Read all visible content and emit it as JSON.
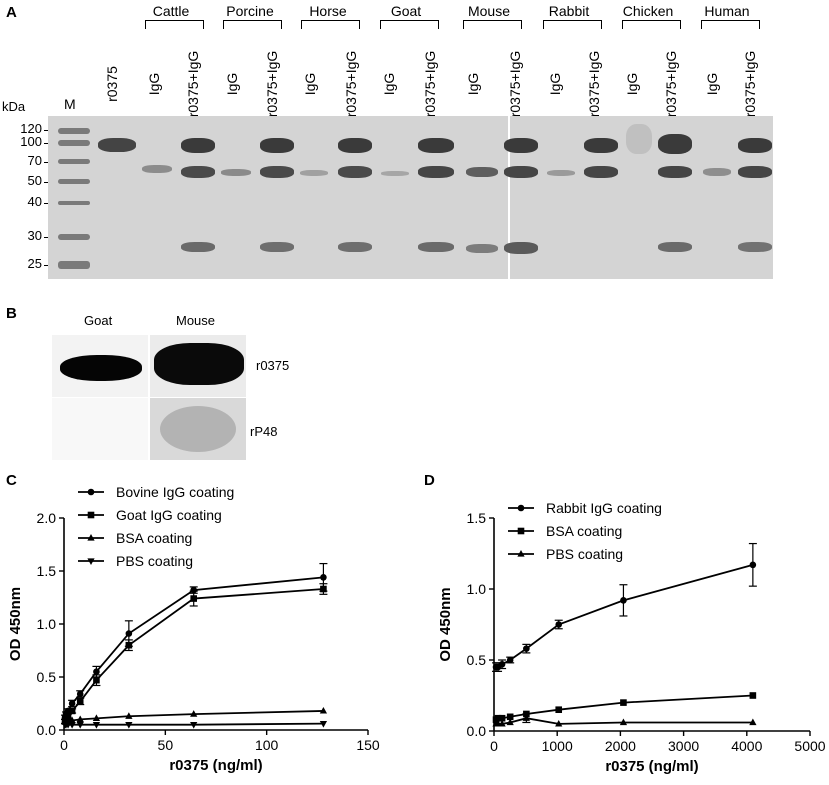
{
  "panels": {
    "a": "A",
    "b": "B",
    "c": "C",
    "d": "D"
  },
  "gel": {
    "kda_label": "kDa",
    "marker_label": "M",
    "mw_markers": [
      "120",
      "100",
      "70",
      "50",
      "40",
      "30",
      "25"
    ],
    "species": [
      "Cattle",
      "Porcine",
      "Horse",
      "Goat",
      "Mouse",
      "Rabbit",
      "Chicken",
      "Human"
    ],
    "lane_labels": [
      "r0375",
      "IgG",
      "r0375+IgG",
      "IgG",
      "r0375+IgG",
      "IgG",
      "r0375+IgG",
      "IgG",
      "r0375+IgG",
      "IgG",
      "r0375+IgG",
      "IgG",
      "r0375+IgG",
      "IgG",
      "r0375+IgG",
      "IgG",
      "r0375+IgG"
    ]
  },
  "blot": {
    "columns": [
      "Goat",
      "Mouse"
    ],
    "rows": [
      "r0375",
      "rP48"
    ]
  },
  "chart_data": [
    {
      "type": "line",
      "panel": "C",
      "xlabel": "r0375 (ng/ml)",
      "ylabel": "OD 450nm",
      "xlim": [
        0,
        150
      ],
      "ylim": [
        0,
        2.0
      ],
      "xticks": [
        0,
        50,
        100,
        150
      ],
      "yticks": [
        0.0,
        0.5,
        1.0,
        1.5,
        2.0
      ],
      "ytick_labels": [
        "0.0",
        "0.5",
        "1.0",
        "1.5",
        "2.0"
      ],
      "legend_position": "top-left",
      "series": [
        {
          "name": "Bovine IgG coating",
          "marker": "circle",
          "x": [
            0.5,
            1,
            2,
            4,
            8,
            16,
            32,
            64,
            128
          ],
          "y": [
            0.12,
            0.15,
            0.18,
            0.25,
            0.34,
            0.55,
            0.91,
            1.32,
            1.44
          ],
          "err": [
            0.02,
            0.02,
            0.02,
            0.03,
            0.03,
            0.05,
            0.12,
            0.03,
            0.13
          ]
        },
        {
          "name": "Goat  IgG coating",
          "marker": "square",
          "x": [
            0.5,
            1,
            2,
            4,
            8,
            16,
            32,
            64,
            128
          ],
          "y": [
            0.08,
            0.1,
            0.13,
            0.18,
            0.27,
            0.47,
            0.8,
            1.24,
            1.33
          ],
          "err": [
            0.02,
            0.02,
            0.02,
            0.02,
            0.03,
            0.05,
            0.05,
            0.07,
            0.05
          ]
        },
        {
          "name": "BSA coating",
          "marker": "triangle-up",
          "x": [
            0.5,
            1,
            2,
            4,
            8,
            16,
            32,
            64,
            128
          ],
          "y": [
            0.08,
            0.08,
            0.09,
            0.09,
            0.1,
            0.11,
            0.13,
            0.15,
            0.18
          ],
          "err": [
            0,
            0,
            0,
            0,
            0,
            0,
            0,
            0,
            0
          ]
        },
        {
          "name": "PBS coating",
          "marker": "triangle-down",
          "x": [
            0.5,
            1,
            2,
            4,
            8,
            16,
            32,
            64,
            128
          ],
          "y": [
            0.05,
            0.05,
            0.05,
            0.05,
            0.05,
            0.05,
            0.05,
            0.05,
            0.06
          ],
          "err": [
            0,
            0,
            0,
            0,
            0,
            0,
            0,
            0,
            0
          ]
        }
      ]
    },
    {
      "type": "line",
      "panel": "D",
      "xlabel": "r0375 (ng/ml)",
      "ylabel": "OD 450nm",
      "xlim": [
        0,
        5000
      ],
      "ylim": [
        0,
        1.5
      ],
      "xticks": [
        0,
        1000,
        2000,
        3000,
        4000,
        5000
      ],
      "yticks": [
        0.0,
        0.5,
        1.0,
        1.5
      ],
      "ytick_labels": [
        "0.0",
        "0.5",
        "1.0",
        "1.5"
      ],
      "legend_position": "top-left",
      "series": [
        {
          "name": "Rabbit IgG coating",
          "marker": "circle",
          "x": [
            32,
            64,
            128,
            256,
            512,
            1024,
            2048,
            4096
          ],
          "y": [
            0.45,
            0.45,
            0.47,
            0.5,
            0.58,
            0.75,
            0.92,
            1.17
          ],
          "err": [
            0.03,
            0.03,
            0.03,
            0.02,
            0.03,
            0.03,
            0.11,
            0.15
          ]
        },
        {
          "name": "BSA coating",
          "marker": "square",
          "x": [
            32,
            64,
            128,
            256,
            512,
            1024,
            2048,
            4096
          ],
          "y": [
            0.08,
            0.09,
            0.09,
            0.1,
            0.12,
            0.15,
            0.2,
            0.25
          ],
          "err": [
            0,
            0,
            0,
            0,
            0,
            0,
            0,
            0
          ]
        },
        {
          "name": "PBS coating",
          "marker": "triangle-up",
          "x": [
            32,
            64,
            128,
            256,
            512,
            1024,
            2048,
            4096
          ],
          "y": [
            0.05,
            0.05,
            0.05,
            0.06,
            0.09,
            0.05,
            0.06,
            0.06
          ],
          "err": [
            0,
            0,
            0,
            0,
            0.03,
            0,
            0,
            0
          ]
        }
      ]
    }
  ]
}
